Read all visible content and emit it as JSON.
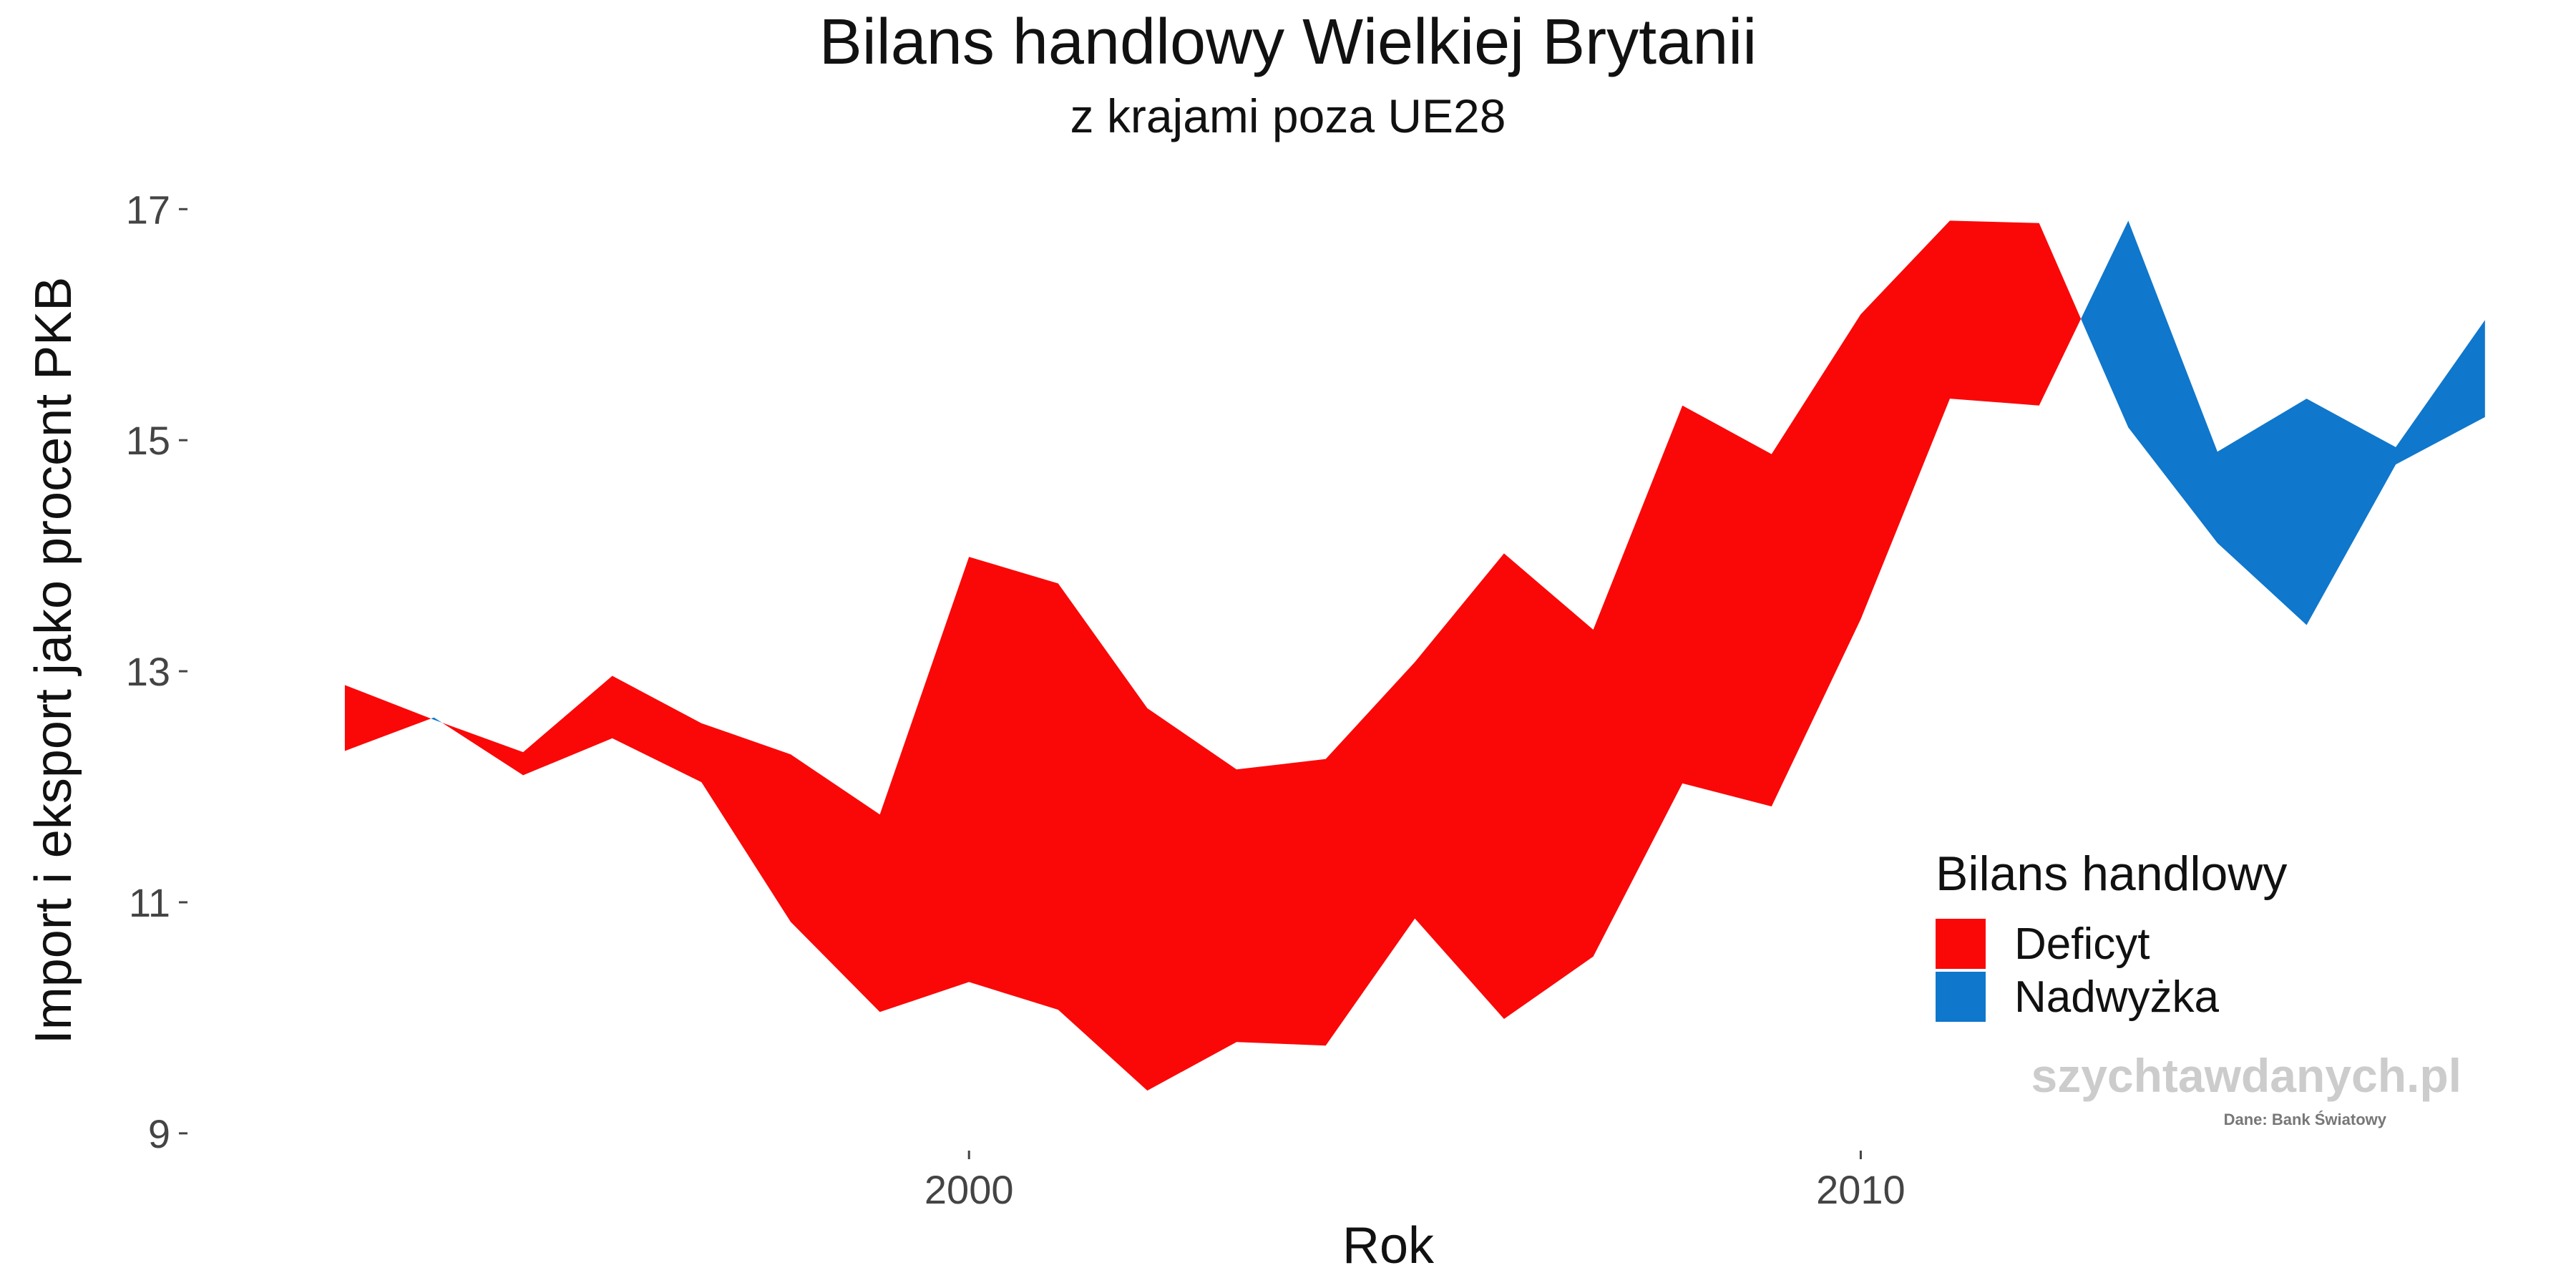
{
  "chart_data": {
    "type": "area",
    "title": "Bilans handlowy Wielkiej Brytanii",
    "subtitle": "z krajami poza UE28",
    "xlabel": "Rok",
    "ylabel": "Import i eksport jako procent PKB",
    "x_ticks": [
      2000,
      2010
    ],
    "y_ticks": [
      9,
      11,
      13,
      15,
      17
    ],
    "xlim": [
      1991.3,
      2017.7
    ],
    "ylim": [
      8.9,
      17.2
    ],
    "grid": false,
    "legend": {
      "title": "Bilans handlowy",
      "position": "right",
      "items": [
        {
          "label": "Deficyt",
          "color": "#FA0808"
        },
        {
          "label": "Nadwyżka",
          "color": "#0F77CC"
        }
      ]
    },
    "years": [
      1993,
      1994,
      1995,
      1996,
      1997,
      1998,
      1999,
      2000,
      2001,
      2002,
      2003,
      2004,
      2005,
      2006,
      2007,
      2008,
      2009,
      2010,
      2011,
      2012,
      2013,
      2014,
      2015,
      2016,
      2017
    ],
    "series": [
      {
        "name": "Import",
        "values": [
          12.88,
          12.58,
          12.3,
          12.96,
          12.55,
          12.28,
          11.76,
          13.99,
          13.76,
          12.68,
          12.15,
          12.24,
          13.08,
          14.02,
          13.36,
          15.3,
          14.88,
          16.09,
          16.9,
          16.88,
          15.11,
          14.11,
          13.4,
          14.79,
          15.2
        ]
      },
      {
        "name": "Eksport",
        "values": [
          12.31,
          12.6,
          12.1,
          12.42,
          12.04,
          10.83,
          10.05,
          10.31,
          10.07,
          9.37,
          9.79,
          9.76,
          10.86,
          9.99,
          10.53,
          12.03,
          11.83,
          13.45,
          15.36,
          15.3,
          16.9,
          14.9,
          15.36,
          14.94,
          16.04
        ]
      }
    ]
  },
  "watermark": "szychtawdanych.pl",
  "source": "Dane: Bank Światowy"
}
